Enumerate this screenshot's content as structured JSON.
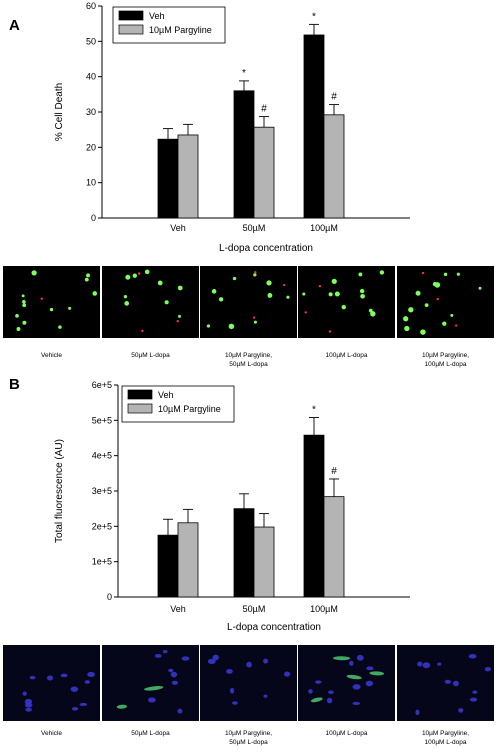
{
  "panel_a_letter": "A",
  "panel_b_letter": "B",
  "chart_data": [
    {
      "type": "bar",
      "panel": "A",
      "categories": [
        "Veh",
        "50µM",
        "100µM"
      ],
      "series": [
        {
          "name": "Veh",
          "color": "#000000",
          "values": [
            22.3,
            36.0,
            51.8
          ],
          "errors": [
            3.0,
            2.8,
            3.0
          ],
          "annotations": [
            "",
            "*",
            "*"
          ]
        },
        {
          "name": "10µM Pargyline",
          "color": "#b4b4b4",
          "values": [
            23.5,
            25.7,
            29.2
          ],
          "errors": [
            3.0,
            3.0,
            2.9
          ],
          "annotations": [
            "",
            "#",
            "#"
          ]
        }
      ],
      "xlabel": "L-dopa concentration",
      "ylabel": "% Cell Death",
      "ylim": [
        0,
        60
      ],
      "yticks": [
        0,
        10,
        20,
        30,
        40,
        50,
        60
      ],
      "ytick_labels": [
        "0",
        "10",
        "20",
        "30",
        "40",
        "50",
        "60"
      ],
      "legend_position": "top-left",
      "grid": false
    },
    {
      "type": "bar",
      "panel": "B",
      "categories": [
        "Veh",
        "50µM",
        "100µM"
      ],
      "series": [
        {
          "name": "Veh",
          "color": "#000000",
          "values": [
            175000,
            250000,
            458000
          ],
          "errors": [
            45000,
            42000,
            50000
          ],
          "annotations": [
            "",
            "",
            "*"
          ]
        },
        {
          "name": "10µM Pargyline",
          "color": "#b4b4b4",
          "values": [
            210000,
            198000,
            284000
          ],
          "errors": [
            38000,
            38000,
            50000
          ],
          "annotations": [
            "",
            "",
            "#"
          ]
        }
      ],
      "xlabel": "L-dopa concentration",
      "ylabel": "Total fluorescence (AU)",
      "ylim": [
        0,
        600000
      ],
      "yticks": [
        0,
        100000,
        200000,
        300000,
        400000,
        500000,
        600000
      ],
      "ytick_labels": [
        "0",
        "1e+5",
        "2e+5",
        "3e+5",
        "4e+5",
        "5e+5",
        "6e+5"
      ],
      "legend_position": "top-left",
      "grid": false
    }
  ],
  "micrographs_a": {
    "background": "#000000",
    "labels": [
      [
        "Vehicle"
      ],
      [
        "50µM L-dopa"
      ],
      [
        "10µM Pargyline,",
        "50µM L-dopa"
      ],
      [
        "100µM L-dopa"
      ],
      [
        "10µM Pargyline,",
        "100µM L-dopa"
      ]
    ]
  },
  "micrographs_b": {
    "background": "#06061a",
    "labels": [
      [
        "Vehicle"
      ],
      [
        "50µM L-dopa"
      ],
      [
        "10µM Pargyline,",
        "50µM L-dopa"
      ],
      [
        "100µM L-dopa"
      ],
      [
        "10µM Pargyline,",
        "100µM L-dopa"
      ]
    ]
  }
}
